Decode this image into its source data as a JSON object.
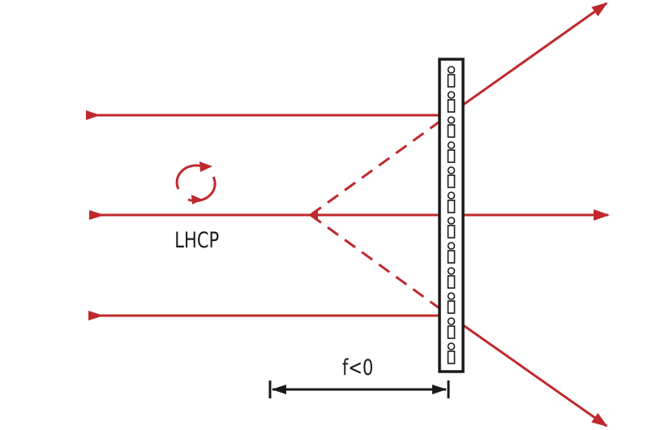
{
  "diagram": {
    "polarization_label": "LHCP",
    "focal_length_label": "f<0",
    "colors": {
      "ray": "#c0282d",
      "plate": "#1a1a1a",
      "dimension": "#1a1a1a",
      "background": "#ffffff"
    },
    "icons": {
      "polarization": "circular-arrow-icon",
      "lens_plate": "metasurface-plate-icon"
    }
  }
}
